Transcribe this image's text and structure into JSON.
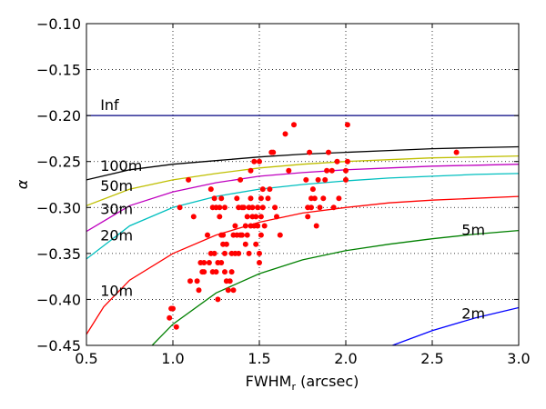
{
  "chart_data": {
    "type": "scatter",
    "xlabel_main": "FWHM",
    "xlabel_sub": "r",
    "xlabel_tail": " (arcsec)",
    "ylabel": "α",
    "xlim": [
      0.5,
      3.0
    ],
    "ylim": [
      -0.45,
      -0.1
    ],
    "grid": true,
    "xticks": [
      0.5,
      1.0,
      1.5,
      2.0,
      2.5,
      3.0
    ],
    "xtick_labels": [
      "0.5",
      "1.0",
      "1.5",
      "2.0",
      "2.5",
      "3.0"
    ],
    "yticks": [
      -0.1,
      -0.15,
      -0.2,
      -0.25,
      -0.3,
      -0.35,
      -0.4,
      -0.45
    ],
    "ytick_labels": [
      "−0.10",
      "−0.15",
      "−0.20",
      "−0.25",
      "−0.30",
      "−0.35",
      "−0.40",
      "−0.45"
    ],
    "curves": [
      {
        "name": "Inf",
        "color": "#000080",
        "x": [
          0.5,
          1.0,
          1.5,
          2.0,
          2.5,
          3.0
        ],
        "y": [
          -0.2,
          -0.2,
          -0.2,
          -0.2,
          -0.2,
          -0.2
        ],
        "label_x": 0.58,
        "label_y": -0.194
      },
      {
        "name": "100m",
        "color": "#000000",
        "x": [
          0.5,
          0.75,
          1.0,
          1.25,
          1.5,
          1.75,
          2.0,
          2.25,
          2.5,
          2.75,
          3.0
        ],
        "y": [
          -0.27,
          -0.259,
          -0.253,
          -0.249,
          -0.245,
          -0.242,
          -0.24,
          -0.238,
          -0.236,
          -0.235,
          -0.234
        ],
        "label_x": 0.58,
        "label_y": -0.26
      },
      {
        "name": "50m",
        "color": "#bfbf00",
        "x": [
          0.5,
          0.75,
          1.0,
          1.25,
          1.5,
          1.75,
          2.0,
          2.25,
          2.5,
          2.75,
          3.0
        ],
        "y": [
          -0.298,
          -0.28,
          -0.27,
          -0.263,
          -0.257,
          -0.253,
          -0.25,
          -0.248,
          -0.246,
          -0.245,
          -0.244
        ],
        "label_x": 0.58,
        "label_y": -0.282
      },
      {
        "name": "30m",
        "color": "#bf00bf",
        "x": [
          0.5,
          0.75,
          1.0,
          1.25,
          1.5,
          1.75,
          2.0,
          2.25,
          2.5,
          2.75,
          3.0
        ],
        "y": [
          -0.326,
          -0.298,
          -0.283,
          -0.273,
          -0.266,
          -0.262,
          -0.259,
          -0.257,
          -0.255,
          -0.254,
          -0.253
        ],
        "label_x": 0.58,
        "label_y": -0.307
      },
      {
        "name": "20m",
        "color": "#00bfbf",
        "x": [
          0.5,
          0.75,
          1.0,
          1.25,
          1.5,
          1.75,
          2.0,
          2.25,
          2.5,
          2.75,
          3.0
        ],
        "y": [
          -0.356,
          -0.32,
          -0.3,
          -0.288,
          -0.28,
          -0.275,
          -0.271,
          -0.268,
          -0.266,
          -0.264,
          -0.263
        ],
        "label_x": 0.58,
        "label_y": -0.336
      },
      {
        "name": "10m",
        "color": "#ff0000",
        "x": [
          0.5,
          0.6,
          0.75,
          1.0,
          1.25,
          1.5,
          1.75,
          2.0,
          2.25,
          2.5,
          2.75,
          3.0
        ],
        "y": [
          -0.438,
          -0.408,
          -0.379,
          -0.35,
          -0.33,
          -0.316,
          -0.306,
          -0.3,
          -0.295,
          -0.292,
          -0.29,
          -0.288
        ],
        "label_x": 0.58,
        "label_y": -0.396
      },
      {
        "name": "5m",
        "color": "#008000",
        "x": [
          0.88,
          1.0,
          1.25,
          1.5,
          1.75,
          2.0,
          2.25,
          2.5,
          2.75,
          3.0
        ],
        "y": [
          -0.45,
          -0.427,
          -0.393,
          -0.372,
          -0.357,
          -0.347,
          -0.34,
          -0.334,
          -0.329,
          -0.325
        ],
        "label_x": 2.67,
        "label_y": -0.33
      },
      {
        "name": "2m",
        "color": "#0000ff",
        "x": [
          2.27,
          2.5,
          2.75,
          3.0
        ],
        "y": [
          -0.45,
          -0.434,
          -0.42,
          -0.409
        ],
        "label_x": 2.67,
        "label_y": -0.421
      }
    ],
    "points": {
      "color": "#ff0000",
      "x": [
        0.98,
        0.99,
        1.0,
        1.02,
        1.04,
        1.09,
        1.1,
        1.12,
        1.14,
        1.15,
        1.16,
        1.17,
        1.18,
        1.18,
        1.2,
        1.21,
        1.22,
        1.22,
        1.23,
        1.23,
        1.24,
        1.24,
        1.25,
        1.25,
        1.26,
        1.26,
        1.27,
        1.27,
        1.28,
        1.28,
        1.28,
        1.29,
        1.29,
        1.3,
        1.3,
        1.3,
        1.31,
        1.31,
        1.32,
        1.33,
        1.34,
        1.34,
        1.35,
        1.35,
        1.36,
        1.36,
        1.37,
        1.37,
        1.38,
        1.38,
        1.39,
        1.39,
        1.4,
        1.4,
        1.41,
        1.42,
        1.42,
        1.43,
        1.43,
        1.44,
        1.44,
        1.45,
        1.45,
        1.45,
        1.46,
        1.46,
        1.47,
        1.47,
        1.48,
        1.48,
        1.49,
        1.49,
        1.5,
        1.5,
        1.5,
        1.51,
        1.51,
        1.51,
        1.52,
        1.52,
        1.53,
        1.55,
        1.56,
        1.57,
        1.58,
        1.59,
        1.6,
        1.62,
        1.65,
        1.67,
        1.7,
        1.77,
        1.78,
        1.78,
        1.79,
        1.8,
        1.8,
        1.81,
        1.82,
        1.83,
        1.84,
        1.85,
        1.87,
        1.88,
        1.89,
        1.9,
        1.92,
        1.93,
        1.95,
        1.96,
        2.0,
        2.0,
        2.01,
        2.01,
        2.64
      ],
      "y": [
        -0.42,
        -0.41,
        -0.41,
        -0.43,
        -0.3,
        -0.27,
        -0.38,
        -0.31,
        -0.38,
        -0.39,
        -0.36,
        -0.37,
        -0.36,
        -0.37,
        -0.33,
        -0.36,
        -0.28,
        -0.35,
        -0.3,
        -0.37,
        -0.29,
        -0.35,
        -0.3,
        -0.37,
        -0.36,
        -0.4,
        -0.3,
        -0.31,
        -0.29,
        -0.33,
        -0.36,
        -0.33,
        -0.34,
        -0.3,
        -0.35,
        -0.37,
        -0.34,
        -0.38,
        -0.39,
        -0.38,
        -0.37,
        -0.35,
        -0.39,
        -0.33,
        -0.32,
        -0.35,
        -0.29,
        -0.33,
        -0.3,
        -0.35,
        -0.27,
        -0.33,
        -0.33,
        -0.3,
        -0.3,
        -0.32,
        -0.34,
        -0.31,
        -0.33,
        -0.3,
        -0.35,
        -0.26,
        -0.29,
        -0.32,
        -0.31,
        -0.3,
        -0.25,
        -0.32,
        -0.31,
        -0.34,
        -0.32,
        -0.3,
        -0.25,
        -0.35,
        -0.36,
        -0.29,
        -0.33,
        -0.31,
        -0.28,
        -0.3,
        -0.32,
        -0.29,
        -0.28,
        -0.24,
        -0.24,
        -0.3,
        -0.31,
        -0.33,
        -0.22,
        -0.26,
        -0.21,
        -0.27,
        -0.3,
        -0.31,
        -0.24,
        -0.29,
        -0.3,
        -0.28,
        -0.29,
        -0.32,
        -0.27,
        -0.3,
        -0.29,
        -0.27,
        -0.26,
        -0.24,
        -0.26,
        -0.3,
        -0.25,
        -0.29,
        -0.27,
        -0.26,
        -0.21,
        -0.25,
        -0.24
      ]
    }
  }
}
